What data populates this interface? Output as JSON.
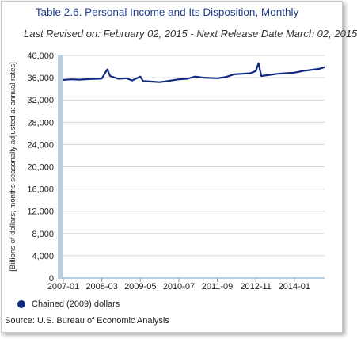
{
  "chart_data": {
    "type": "line",
    "title": "Table 2.6. Personal Income and Its Disposition, Monthly",
    "subtitle": "Last Revised on: February 02, 2015 - Next Release Date March 02, 2015",
    "ylabel": "[Billions of dollars; months seasonally adjusted at annual rates]",
    "xlabel": "",
    "ylim": [
      0,
      40000
    ],
    "y_ticks": [
      "0",
      "4,000",
      "8,000",
      "12,000",
      "16,000",
      "20,000",
      "24,000",
      "28,000",
      "32,000",
      "36,000",
      "40,000"
    ],
    "x_ticks": [
      "2007-01",
      "2008-03",
      "2009-05",
      "2010-07",
      "2011-09",
      "2012-11",
      "2014-01"
    ],
    "grid": true,
    "legend_position": "bottom-left",
    "series": [
      {
        "name": "Chained (2009) dollars",
        "color": "#0f2a80",
        "points": [
          [
            "2007-01",
            35600
          ],
          [
            "2007-04",
            35700
          ],
          [
            "2007-07",
            35650
          ],
          [
            "2007-10",
            35750
          ],
          [
            "2008-01",
            35800
          ],
          [
            "2008-03",
            35850
          ],
          [
            "2008-05",
            37500
          ],
          [
            "2008-06",
            36300
          ],
          [
            "2008-09",
            35800
          ],
          [
            "2008-12",
            35900
          ],
          [
            "2009-02",
            35500
          ],
          [
            "2009-05",
            36200
          ],
          [
            "2009-06",
            35400
          ],
          [
            "2009-09",
            35300
          ],
          [
            "2009-12",
            35200
          ],
          [
            "2010-03",
            35400
          ],
          [
            "2010-07",
            35700
          ],
          [
            "2010-10",
            35800
          ],
          [
            "2011-01",
            36200
          ],
          [
            "2011-04",
            36000
          ],
          [
            "2011-09",
            35900
          ],
          [
            "2011-12",
            36100
          ],
          [
            "2012-03",
            36600
          ],
          [
            "2012-06",
            36700
          ],
          [
            "2012-09",
            36800
          ],
          [
            "2012-11",
            37200
          ],
          [
            "2012-12",
            38600
          ],
          [
            "2013-01",
            36300
          ],
          [
            "2013-04",
            36500
          ],
          [
            "2013-07",
            36700
          ],
          [
            "2013-10",
            36800
          ],
          [
            "2014-01",
            36900
          ],
          [
            "2014-04",
            37200
          ],
          [
            "2014-07",
            37400
          ],
          [
            "2014-10",
            37600
          ],
          [
            "2014-12",
            37900
          ]
        ]
      }
    ]
  },
  "legend": {
    "label": "Chained (2009) dollars"
  },
  "source": "Source: U.S. Bureau of Economic  Analysis"
}
